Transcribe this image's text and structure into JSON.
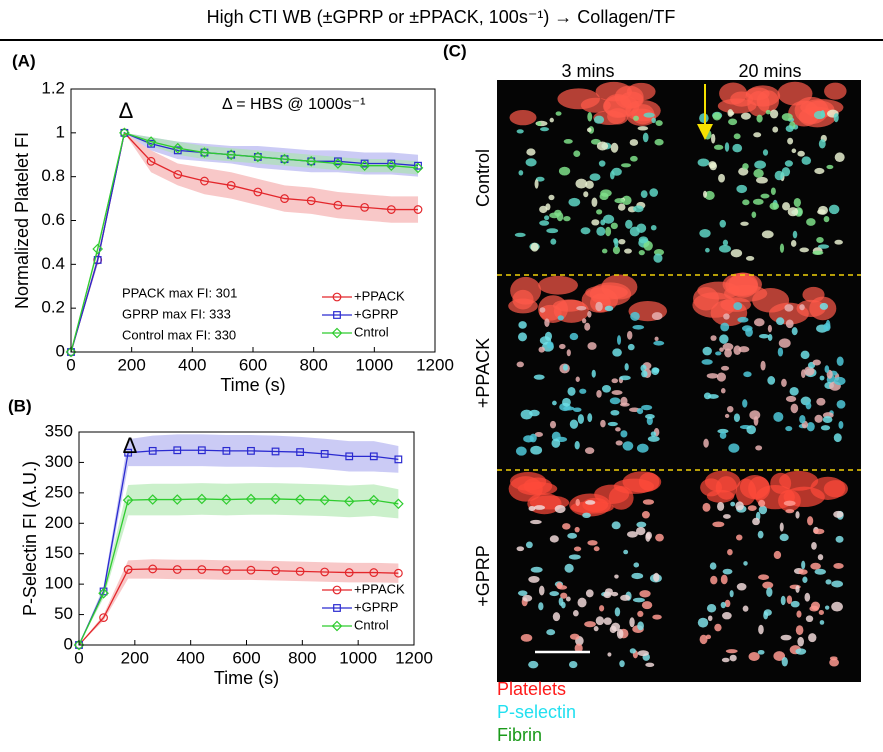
{
  "title": "High CTI WB (±GPRP or ±PPACK, 100s⁻¹) → Collagen/TF",
  "chart_data": [
    {
      "type": "line",
      "panel": "(A)",
      "xlabel": "Time (s)",
      "ylabel": "Normalized Platelet FI",
      "x": [
        0,
        88,
        176,
        264,
        352,
        440,
        528,
        616,
        704,
        792,
        880,
        968,
        1056,
        1144
      ],
      "xlim": [
        0,
        1200
      ],
      "xticks": [
        0,
        200,
        400,
        600,
        800,
        1000,
        1200
      ],
      "ylim": [
        0,
        1.2
      ],
      "yticks": [
        0,
        0.2,
        0.4,
        0.6,
        0.8,
        1,
        1.2
      ],
      "legend": "lower right",
      "annotations": [
        "Δ",
        "Δ = HBS @ 1000s⁻¹",
        "PPACK max FI: 301",
        "GPRP max FI: 333",
        "Control max FI: 330"
      ],
      "series": [
        {
          "name": "+PPACK",
          "color": "#e3262b",
          "band_color": "#f3a3a3",
          "marker": "circle",
          "values": [
            0,
            0.42,
            1,
            0.87,
            0.81,
            0.78,
            0.76,
            0.73,
            0.7,
            0.69,
            0.67,
            0.66,
            0.65,
            0.65
          ],
          "error": [
            0,
            0.02,
            0,
            0.05,
            0.05,
            0.06,
            0.06,
            0.06,
            0.06,
            0.06,
            0.06,
            0.06,
            0.06,
            0.06
          ]
        },
        {
          "name": "+GPRP",
          "color": "#2a2ad0",
          "band_color": "#a9a9ee",
          "marker": "square",
          "values": [
            0,
            0.42,
            1,
            0.95,
            0.92,
            0.91,
            0.9,
            0.89,
            0.88,
            0.87,
            0.87,
            0.86,
            0.86,
            0.85
          ],
          "error": [
            0,
            0.02,
            0,
            0.03,
            0.04,
            0.04,
            0.04,
            0.05,
            0.05,
            0.05,
            0.05,
            0.05,
            0.05,
            0.05
          ]
        },
        {
          "name": "Cntrol",
          "color": "#2fcc2f",
          "band_color": "#a9e6a9",
          "marker": "diamond",
          "values": [
            0,
            0.47,
            1,
            0.96,
            0.93,
            0.91,
            0.9,
            0.89,
            0.88,
            0.87,
            0.86,
            0.85,
            0.85,
            0.84
          ],
          "error": [
            0,
            0.02,
            0,
            0.02,
            0.03,
            0.03,
            0.03,
            0.03,
            0.03,
            0.03,
            0.03,
            0.03,
            0.03,
            0.03
          ]
        }
      ]
    },
    {
      "type": "line",
      "panel": "(B)",
      "xlabel": "Time (s)",
      "ylabel": "P-Selectin FI (A.U.)",
      "x": [
        0,
        88,
        176,
        264,
        352,
        440,
        528,
        616,
        704,
        792,
        880,
        968,
        1056,
        1144
      ],
      "xlim": [
        0,
        1200
      ],
      "xticks": [
        0,
        200,
        400,
        600,
        800,
        1000,
        1200
      ],
      "ylim": [
        0,
        350
      ],
      "yticks": [
        0,
        50,
        100,
        150,
        200,
        250,
        300,
        350
      ],
      "legend": "lower right",
      "annotations": [
        "Δ"
      ],
      "series": [
        {
          "name": "+PPACK",
          "color": "#e3262b",
          "band_color": "#f3a3a3",
          "marker": "circle",
          "values": [
            0,
            45,
            124,
            125,
            124,
            124,
            123,
            123,
            122,
            121,
            120,
            119,
            119,
            118
          ],
          "error": [
            0,
            5,
            15,
            16,
            16,
            16,
            16,
            16,
            16,
            16,
            16,
            16,
            16,
            16
          ]
        },
        {
          "name": "+GPRP",
          "color": "#2a2ad0",
          "band_color": "#a9a9ee",
          "marker": "square",
          "values": [
            0,
            88,
            316,
            319,
            320,
            320,
            319,
            319,
            318,
            317,
            314,
            310,
            310,
            305
          ],
          "error": [
            0,
            8,
            22,
            25,
            26,
            26,
            26,
            26,
            26,
            25,
            25,
            25,
            25,
            22
          ]
        },
        {
          "name": "Cntrol",
          "color": "#2fcc2f",
          "band_color": "#a9e6a9",
          "marker": "diamond",
          "values": [
            0,
            85,
            238,
            239,
            239,
            240,
            239,
            240,
            240,
            239,
            238,
            236,
            238,
            232
          ],
          "error": [
            0,
            8,
            25,
            26,
            26,
            26,
            26,
            26,
            26,
            26,
            26,
            26,
            26,
            24
          ]
        }
      ]
    }
  ],
  "image_panel": {
    "panel": "(C)",
    "columns": [
      "3 mins",
      "20 mins"
    ],
    "rows": [
      "Control",
      "+PPACK",
      "+GPRP"
    ],
    "legend": [
      "Platelets",
      "P-selectin",
      "Fibrin"
    ]
  }
}
